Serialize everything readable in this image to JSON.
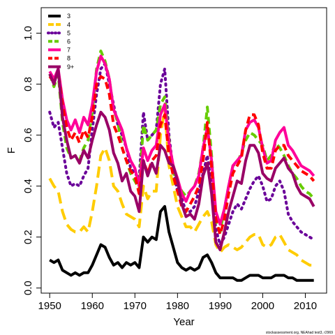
{
  "chart_data": {
    "type": "line",
    "xlabel": "Year",
    "ylabel": "F",
    "xlim": [
      1948,
      2015
    ],
    "ylim": [
      -0.02,
      1.1
    ],
    "xticks": [
      1950,
      1960,
      1970,
      1980,
      1990,
      2000,
      2010
    ],
    "yticks": [
      0.0,
      0.2,
      0.4,
      0.6,
      0.8,
      1.0
    ],
    "ytick_labels": [
      "0.0",
      "0.2",
      "0.4",
      "0.6",
      "0.8",
      "1.0"
    ],
    "legend_position": "top-left",
    "credit": "stockassessment.org, NEAhad test3, r2969",
    "x": [
      1950,
      1951,
      1952,
      1953,
      1954,
      1955,
      1956,
      1957,
      1958,
      1959,
      1960,
      1961,
      1962,
      1963,
      1964,
      1965,
      1966,
      1967,
      1968,
      1969,
      1970,
      1971,
      1972,
      1973,
      1974,
      1975,
      1976,
      1977,
      1978,
      1979,
      1980,
      1981,
      1982,
      1983,
      1984,
      1985,
      1986,
      1987,
      1988,
      1989,
      1990,
      1991,
      1992,
      1993,
      1994,
      1995,
      1996,
      1997,
      1998,
      1999,
      2000,
      2001,
      2002,
      2003,
      2004,
      2005,
      2006,
      2007,
      2008,
      2009,
      2010,
      2011,
      2012
    ],
    "series": [
      {
        "name": "3",
        "color": "#000000",
        "dash": "solid",
        "values": [
          0.11,
          0.1,
          0.11,
          0.07,
          0.06,
          0.05,
          0.06,
          0.05,
          0.06,
          0.06,
          0.09,
          0.13,
          0.17,
          0.16,
          0.12,
          0.09,
          0.1,
          0.08,
          0.1,
          0.09,
          0.1,
          0.08,
          0.2,
          0.18,
          0.2,
          0.19,
          0.3,
          0.32,
          0.22,
          0.16,
          0.1,
          0.08,
          0.07,
          0.08,
          0.07,
          0.08,
          0.12,
          0.13,
          0.1,
          0.06,
          0.04,
          0.04,
          0.04,
          0.04,
          0.03,
          0.03,
          0.04,
          0.05,
          0.05,
          0.05,
          0.04,
          0.04,
          0.04,
          0.05,
          0.05,
          0.05,
          0.04,
          0.04,
          0.03,
          0.03,
          0.03,
          0.03,
          0.03
        ]
      },
      {
        "name": "4",
        "color": "#ffcc00",
        "dash": "longdash",
        "values": [
          0.43,
          0.4,
          0.38,
          0.3,
          0.25,
          0.23,
          0.22,
          0.22,
          0.24,
          0.22,
          0.3,
          0.4,
          0.52,
          0.55,
          0.5,
          0.4,
          0.38,
          0.33,
          0.29,
          0.28,
          0.27,
          0.24,
          0.4,
          0.35,
          0.38,
          0.38,
          0.6,
          0.7,
          0.48,
          0.4,
          0.32,
          0.28,
          0.24,
          0.24,
          0.22,
          0.25,
          0.28,
          0.3,
          0.26,
          0.17,
          0.14,
          0.16,
          0.17,
          0.16,
          0.15,
          0.16,
          0.18,
          0.2,
          0.21,
          0.21,
          0.17,
          0.16,
          0.17,
          0.2,
          0.21,
          0.18,
          0.15,
          0.14,
          0.13,
          0.11,
          0.1,
          0.09,
          0.09
        ]
      },
      {
        "name": "5",
        "color": "#6a0099",
        "dash": "dot",
        "values": [
          0.69,
          0.63,
          0.65,
          0.55,
          0.45,
          0.4,
          0.41,
          0.4,
          0.44,
          0.47,
          0.62,
          0.76,
          0.86,
          0.88,
          0.8,
          0.72,
          0.64,
          0.6,
          0.55,
          0.47,
          0.45,
          0.43,
          0.69,
          0.58,
          0.6,
          0.62,
          0.8,
          0.86,
          0.6,
          0.46,
          0.38,
          0.35,
          0.3,
          0.3,
          0.32,
          0.38,
          0.45,
          0.52,
          0.4,
          0.23,
          0.17,
          0.2,
          0.25,
          0.3,
          0.33,
          0.31,
          0.35,
          0.39,
          0.42,
          0.44,
          0.4,
          0.34,
          0.35,
          0.4,
          0.42,
          0.38,
          0.29,
          0.26,
          0.24,
          0.22,
          0.21,
          0.2,
          0.19
        ]
      },
      {
        "name": "6",
        "color": "#66cc00",
        "dash": "dash",
        "values": [
          0.84,
          0.79,
          0.84,
          0.65,
          0.55,
          0.51,
          0.52,
          0.5,
          0.55,
          0.58,
          0.69,
          0.86,
          0.93,
          0.89,
          0.82,
          0.7,
          0.65,
          0.55,
          0.5,
          0.45,
          0.42,
          0.39,
          0.64,
          0.58,
          0.6,
          0.62,
          0.72,
          0.75,
          0.58,
          0.46,
          0.41,
          0.38,
          0.36,
          0.38,
          0.4,
          0.45,
          0.55,
          0.71,
          0.52,
          0.26,
          0.22,
          0.31,
          0.4,
          0.48,
          0.49,
          0.53,
          0.58,
          0.61,
          0.6,
          0.58,
          0.56,
          0.5,
          0.52,
          0.57,
          0.55,
          0.52,
          0.48,
          0.45,
          0.43,
          0.4,
          0.38,
          0.37,
          0.35
        ]
      },
      {
        "name": "7",
        "color": "#ff0099",
        "dash": "solid",
        "values": [
          0.85,
          0.82,
          0.86,
          0.74,
          0.66,
          0.62,
          0.66,
          0.61,
          0.67,
          0.64,
          0.72,
          0.85,
          0.91,
          0.88,
          0.82,
          0.7,
          0.66,
          0.62,
          0.55,
          0.5,
          0.47,
          0.4,
          0.55,
          0.5,
          0.54,
          0.56,
          0.68,
          0.72,
          0.57,
          0.48,
          0.43,
          0.37,
          0.34,
          0.38,
          0.4,
          0.44,
          0.55,
          0.63,
          0.5,
          0.3,
          0.25,
          0.31,
          0.4,
          0.48,
          0.5,
          0.52,
          0.62,
          0.65,
          0.66,
          0.63,
          0.55,
          0.49,
          0.5,
          0.58,
          0.61,
          0.63,
          0.56,
          0.54,
          0.51,
          0.48,
          0.47,
          0.46,
          0.44
        ]
      },
      {
        "name": "8",
        "color": "#ff0000",
        "dash": "dash",
        "values": [
          0.83,
          0.81,
          0.85,
          0.72,
          0.63,
          0.58,
          0.61,
          0.57,
          0.62,
          0.59,
          0.67,
          0.8,
          0.83,
          0.82,
          0.76,
          0.64,
          0.6,
          0.55,
          0.5,
          0.46,
          0.44,
          0.37,
          0.5,
          0.45,
          0.5,
          0.52,
          0.64,
          0.68,
          0.52,
          0.44,
          0.38,
          0.32,
          0.3,
          0.33,
          0.36,
          0.4,
          0.5,
          0.65,
          0.47,
          0.27,
          0.21,
          0.27,
          0.37,
          0.45,
          0.48,
          0.51,
          0.62,
          0.68,
          0.68,
          0.64,
          0.53,
          0.47,
          0.47,
          0.54,
          0.56,
          0.56,
          0.52,
          0.5,
          0.48,
          0.46,
          0.45,
          0.44,
          0.42
        ]
      },
      {
        "name": "9+",
        "color": "#990066",
        "dash": "solid",
        "values": [
          0.84,
          0.8,
          0.86,
          0.67,
          0.58,
          0.51,
          0.52,
          0.49,
          0.54,
          0.51,
          0.58,
          0.64,
          0.69,
          0.67,
          0.62,
          0.53,
          0.49,
          0.42,
          0.45,
          0.38,
          0.36,
          0.3,
          0.5,
          0.44,
          0.49,
          0.45,
          0.56,
          0.54,
          0.49,
          0.48,
          0.42,
          0.33,
          0.28,
          0.29,
          0.27,
          0.33,
          0.44,
          0.49,
          0.37,
          0.18,
          0.15,
          0.22,
          0.3,
          0.36,
          0.42,
          0.41,
          0.5,
          0.56,
          0.56,
          0.53,
          0.45,
          0.43,
          0.42,
          0.47,
          0.49,
          0.51,
          0.47,
          0.45,
          0.4,
          0.37,
          0.36,
          0.35,
          0.32
        ]
      }
    ]
  }
}
